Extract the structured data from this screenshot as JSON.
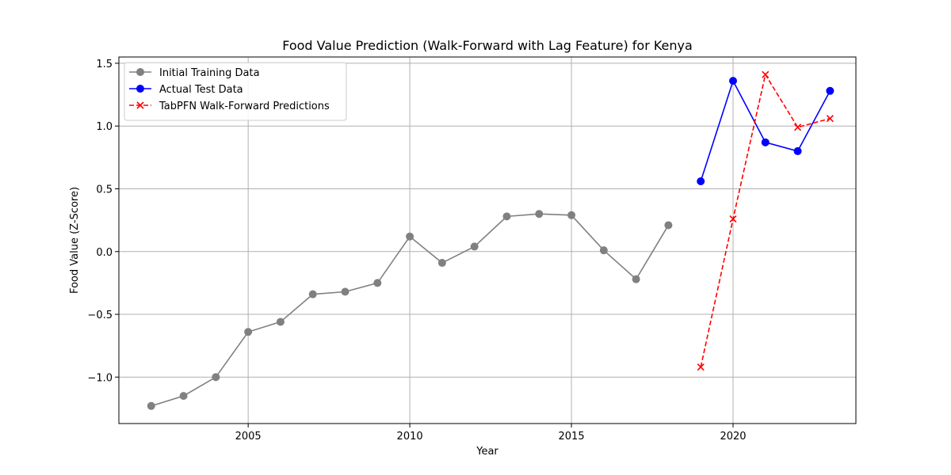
{
  "chart_data": {
    "type": "line",
    "title": "Food Value Prediction (Walk-Forward with Lag Feature) for Kenya",
    "xlabel": "Year",
    "ylabel": "Food Value (Z-Score)",
    "xlim": [
      2001,
      2023.8
    ],
    "ylim": [
      -1.37,
      1.55
    ],
    "xticks": [
      2005,
      2010,
      2015,
      2020
    ],
    "yticks": [
      -1.0,
      -0.5,
      0.0,
      0.5,
      1.0,
      1.5
    ],
    "ytick_labels": [
      "−1.0",
      "−0.5",
      "0.0",
      "0.5",
      "1.0",
      "1.5"
    ],
    "grid": true,
    "legend_position": "top-left",
    "series": [
      {
        "name": "Initial Training Data",
        "color": "#808080",
        "linestyle": "solid",
        "marker": "circle",
        "x": [
          2002,
          2003,
          2004,
          2005,
          2006,
          2007,
          2008,
          2009,
          2010,
          2011,
          2012,
          2013,
          2014,
          2015,
          2016,
          2017,
          2018
        ],
        "y": [
          -1.23,
          -1.15,
          -1.0,
          -0.64,
          -0.56,
          -0.34,
          -0.32,
          -0.25,
          0.12,
          -0.09,
          0.04,
          0.28,
          0.3,
          0.29,
          0.01,
          -0.22,
          0.21
        ]
      },
      {
        "name": "Actual Test Data",
        "color": "#0000ff",
        "linestyle": "solid",
        "marker": "circle",
        "x": [
          2019,
          2020,
          2021,
          2022,
          2023
        ],
        "y": [
          0.56,
          1.36,
          0.87,
          0.8,
          1.28
        ]
      },
      {
        "name": "TabPFN Walk-Forward Predictions",
        "color": "#ff0000",
        "linestyle": "dashed",
        "marker": "x",
        "x": [
          2019,
          2020,
          2021,
          2022,
          2023
        ],
        "y": [
          -0.92,
          0.26,
          1.41,
          0.99,
          1.06
        ]
      }
    ]
  }
}
